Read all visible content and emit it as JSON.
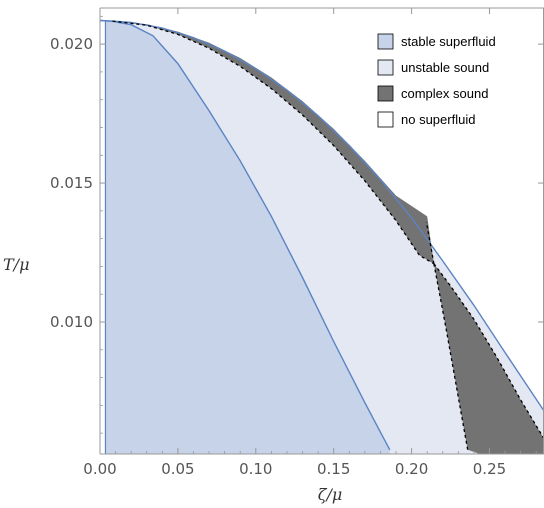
{
  "chart_data": {
    "type": "area",
    "title": "",
    "xlabel": "ζ/μ",
    "ylabel": "T/μ",
    "xlim": [
      0.0,
      0.285
    ],
    "ylim": [
      0.00525,
      0.0213
    ],
    "x_ticks": [
      {
        "value": 0.0,
        "label": "0.00"
      },
      {
        "value": 0.05,
        "label": "0.05"
      },
      {
        "value": 0.1,
        "label": "0.10"
      },
      {
        "value": 0.15,
        "label": "0.15"
      },
      {
        "value": 0.2,
        "label": "0.20"
      },
      {
        "value": 0.25,
        "label": "0.25"
      }
    ],
    "y_ticks": [
      {
        "value": 0.01,
        "label": "0.010"
      },
      {
        "value": 0.015,
        "label": "0.015"
      },
      {
        "value": 0.02,
        "label": "0.020"
      }
    ],
    "grid": false,
    "legend_position": "top-right",
    "colors": {
      "stable": "#c6d3e8",
      "unstable": "#e3e8f3",
      "complex": "#737373",
      "none": "#ffffff",
      "curve": "#5b84c4",
      "dashed": "#000000",
      "frame": "#999999"
    },
    "legend": [
      {
        "key": "stable",
        "label": "stable superfluid"
      },
      {
        "key": "unstable",
        "label": "unstable sound"
      },
      {
        "key": "complex",
        "label": "complex sound"
      },
      {
        "key": "none",
        "label": "no superfluid"
      }
    ],
    "regions": {
      "stable_boundary": [
        [
          0.0,
          0.02085
        ],
        [
          0.008,
          0.02082
        ],
        [
          0.02,
          0.0207
        ],
        [
          0.034,
          0.0203
        ],
        [
          0.05,
          0.0193
        ],
        [
          0.07,
          0.0176
        ],
        [
          0.09,
          0.0158
        ],
        [
          0.11,
          0.0138
        ],
        [
          0.13,
          0.0116
        ],
        [
          0.15,
          0.0093
        ],
        [
          0.17,
          0.0071
        ],
        [
          0.186,
          0.0054
        ]
      ],
      "outer_boundary": [
        [
          0.0,
          0.02085
        ],
        [
          0.008,
          0.02083
        ],
        [
          0.02,
          0.02078
        ],
        [
          0.04,
          0.02058
        ],
        [
          0.06,
          0.02023
        ],
        [
          0.08,
          0.01975
        ],
        [
          0.1,
          0.01912
        ],
        [
          0.12,
          0.01835
        ],
        [
          0.14,
          0.01742
        ],
        [
          0.16,
          0.01635
        ],
        [
          0.18,
          0.01513
        ],
        [
          0.2,
          0.01375
        ],
        [
          0.22,
          0.0122
        ],
        [
          0.24,
          0.0106
        ],
        [
          0.26,
          0.0089
        ],
        [
          0.285,
          0.0068
        ]
      ],
      "complex_upper_dashed": [
        [
          0.008,
          0.02083
        ],
        [
          0.03,
          0.02068
        ],
        [
          0.05,
          0.02035
        ],
        [
          0.07,
          0.01985
        ],
        [
          0.09,
          0.0192
        ],
        [
          0.11,
          0.0184
        ],
        [
          0.13,
          0.01745
        ],
        [
          0.15,
          0.01635
        ],
        [
          0.17,
          0.01508
        ],
        [
          0.19,
          0.01365
        ],
        [
          0.205,
          0.0124
        ],
        [
          0.2143,
          0.0121
        ]
      ],
      "complex_upper_solid": [
        [
          0.008,
          0.02083
        ],
        [
          0.03,
          0.02072
        ],
        [
          0.05,
          0.02045
        ],
        [
          0.07,
          0.02005
        ],
        [
          0.09,
          0.0195
        ],
        [
          0.11,
          0.0188
        ],
        [
          0.13,
          0.01795
        ],
        [
          0.15,
          0.01695
        ],
        [
          0.17,
          0.0158
        ],
        [
          0.19,
          0.01455
        ],
        [
          0.21,
          0.0138
        ]
      ],
      "complex_lower_dashed": [
        [
          0.2143,
          0.0121
        ],
        [
          0.225,
          0.0113
        ],
        [
          0.24,
          0.0101
        ],
        [
          0.255,
          0.0087
        ],
        [
          0.27,
          0.0072
        ],
        [
          0.285,
          0.0058
        ]
      ],
      "complex_left_dashed": [
        [
          0.2143,
          0.0121
        ],
        [
          0.2095,
          0.0136
        ]
      ],
      "complex_right_dashed": [
        [
          0.2143,
          0.0121
        ],
        [
          0.222,
          0.0098
        ],
        [
          0.229,
          0.0076
        ],
        [
          0.236,
          0.0054
        ]
      ]
    }
  }
}
